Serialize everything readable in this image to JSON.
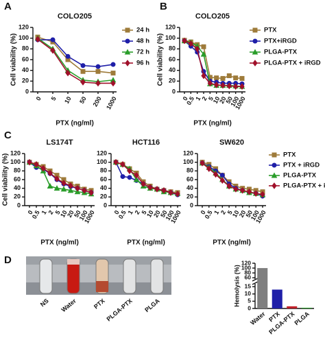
{
  "panel_labels": [
    "A",
    "B",
    "C",
    "D"
  ],
  "photo_labels": [
    "NS",
    "Water",
    "PTX",
    "PLGA-PTX",
    "PLGA"
  ],
  "chart_data": [
    {
      "type": "line",
      "title": "COLO205",
      "x_label": "PTX (ng/ml)",
      "y_label": "Cell viability (%)",
      "categories": [
        "0",
        "5",
        "10",
        "50",
        "200",
        "1000"
      ],
      "ylim": [
        0,
        120
      ],
      "yticks": [
        0,
        20,
        40,
        60,
        80,
        100,
        120
      ],
      "legend": true,
      "markers": [
        "square",
        "circle",
        "triangle",
        "diamond"
      ],
      "series": [
        {
          "name": "24 h",
          "color": "#9e7b3a",
          "values": [
            102,
            93,
            60,
            38,
            38,
            35
          ]
        },
        {
          "name": "48 h",
          "color": "#1f1fa8",
          "values": [
            97,
            97,
            66,
            49,
            47,
            51
          ]
        },
        {
          "name": "72 h",
          "color": "#2a9d2a",
          "values": [
            100,
            80,
            40,
            22,
            19,
            22
          ]
        },
        {
          "name": "96 h",
          "color": "#a0102a",
          "values": [
            98,
            77,
            35,
            18,
            16,
            16
          ]
        }
      ]
    },
    {
      "type": "line",
      "title": "COLO205",
      "x_label": "PTX (ng/ml)",
      "y_label": "Cell viability (%)",
      "categories": [
        "0",
        "0.5",
        "1",
        "2",
        "5",
        "10",
        "20",
        "50",
        "100",
        "1000"
      ],
      "ylim": [
        0,
        120
      ],
      "yticks": [
        0,
        20,
        40,
        60,
        80,
        100,
        120
      ],
      "legend": true,
      "markers": [
        "square",
        "circle",
        "triangle",
        "diamond"
      ],
      "series": [
        {
          "name": "PTX",
          "color": "#9e7b3a",
          "values": [
            96,
            93,
            88,
            84,
            27,
            26,
            25,
            30,
            26,
            25
          ]
        },
        {
          "name": "PTX+iRGD",
          "color": "#1f1fa8",
          "values": [
            95,
            85,
            74,
            38,
            20,
            18,
            16,
            16,
            16,
            15
          ]
        },
        {
          "name": "PLGA-PTX",
          "color": "#2a9d2a",
          "values": [
            95,
            92,
            85,
            70,
            15,
            12,
            12,
            12,
            11,
            10
          ]
        },
        {
          "name": "PLGA-PTX + iRGD",
          "color": "#a0102a",
          "values": [
            95,
            90,
            80,
            30,
            16,
            13,
            12,
            11,
            10,
            10
          ]
        }
      ]
    },
    {
      "type": "line",
      "title": "LS174T",
      "x_label": "PTX (ng/ml)",
      "y_label": "Cell viability (%)",
      "categories": [
        "0",
        "0.5",
        "1",
        "2",
        "5",
        "10",
        "20",
        "50",
        "100",
        "1000"
      ],
      "ylim": [
        0,
        120
      ],
      "yticks": [
        0,
        20,
        40,
        60,
        80,
        100,
        120
      ],
      "legend": false,
      "markers": [
        "square",
        "circle",
        "triangle",
        "diamond"
      ],
      "series": [
        {
          "color": "#9e7b3a",
          "values": [
            100,
            95,
            90,
            80,
            70,
            60,
            50,
            45,
            38,
            35
          ]
        },
        {
          "color": "#1f1fa8",
          "values": [
            100,
            88,
            84,
            74,
            60,
            50,
            44,
            40,
            35,
            30
          ]
        },
        {
          "color": "#2a9d2a",
          "values": [
            100,
            92,
            80,
            45,
            40,
            38,
            35,
            32,
            30,
            27
          ]
        },
        {
          "color": "#a0102a",
          "values": [
            100,
            95,
            86,
            75,
            62,
            52,
            46,
            40,
            35,
            30
          ]
        }
      ]
    },
    {
      "type": "line",
      "title": "HCT116",
      "x_label": "PTX (ng/ml)",
      "categories": [
        "0",
        "0.5",
        "1",
        "2",
        "5",
        "10",
        "20",
        "50",
        "100",
        "1000"
      ],
      "ylim": [
        0,
        120
      ],
      "yticks": [
        0,
        20,
        40,
        60,
        80,
        100,
        120
      ],
      "legend": false,
      "markers": [
        "square",
        "circle",
        "triangle",
        "diamond"
      ],
      "series": [
        {
          "color": "#9e7b3a",
          "values": [
            100,
            95,
            85,
            75,
            55,
            45,
            38,
            35,
            32,
            30
          ]
        },
        {
          "color": "#1f1fa8",
          "values": [
            100,
            67,
            65,
            58,
            50,
            42,
            38,
            35,
            30,
            25
          ]
        },
        {
          "color": "#2a9d2a",
          "values": [
            100,
            95,
            85,
            60,
            45,
            40,
            38,
            32,
            30,
            28
          ]
        },
        {
          "color": "#a0102a",
          "values": [
            100,
            95,
            80,
            70,
            50,
            42,
            38,
            35,
            30,
            27
          ]
        }
      ]
    },
    {
      "type": "line",
      "title": "SW620",
      "x_label": "PTX (ng/ml)",
      "categories": [
        "0",
        "0.5",
        "1",
        "2",
        "5",
        "10",
        "20",
        "50",
        "100",
        "1000"
      ],
      "ylim": [
        0,
        120
      ],
      "yticks": [
        0,
        20,
        40,
        60,
        80,
        100,
        120
      ],
      "legend": true,
      "markers": [
        "square",
        "circle",
        "triangle",
        "diamond"
      ],
      "series": [
        {
          "name": "PTX",
          "color": "#9e7b3a",
          "values": [
            100,
            95,
            85,
            70,
            55,
            45,
            40,
            38,
            35,
            32
          ]
        },
        {
          "name": "PTX + iRGD",
          "color": "#1f1fa8",
          "values": [
            98,
            90,
            80,
            70,
            50,
            40,
            35,
            30,
            28,
            22
          ]
        },
        {
          "name": "PLGA-PTX",
          "color": "#2a9d2a",
          "values": [
            98,
            88,
            75,
            60,
            45,
            38,
            35,
            30,
            28,
            25
          ]
        },
        {
          "name": "PLGA-PTX + iRGD",
          "color": "#a0102a",
          "values": [
            98,
            85,
            72,
            58,
            45,
            38,
            35,
            32,
            28,
            26
          ]
        }
      ]
    },
    {
      "type": "bar",
      "y_label": "Hemolysis (%)",
      "categories": [
        "Water",
        "PTX",
        "PLGA-PTX",
        "PLGA"
      ],
      "values": [
        100,
        13,
        1.5,
        0.5
      ],
      "colors": [
        "#7f7f7f",
        "#1f1fa8",
        "#c0202a",
        "#2a9d2a"
      ],
      "ylim": [
        0,
        120
      ],
      "y_break": [
        17,
        55
      ],
      "yticks": [
        0,
        5,
        10,
        15,
        60,
        80,
        100,
        120
      ]
    }
  ]
}
